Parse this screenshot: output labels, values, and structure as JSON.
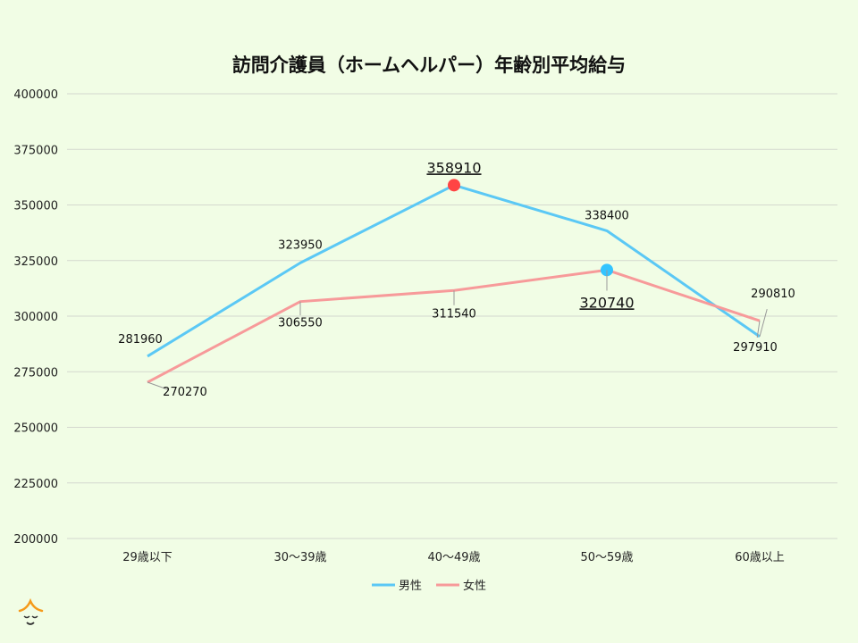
{
  "chart_data": {
    "type": "line",
    "title": "訪問介護員（ホームヘルパー）年齢別平均給与",
    "categories": [
      "29歳以下",
      "30～39歳",
      "40～49歳",
      "50～59歳",
      "60歳以上"
    ],
    "series": [
      {
        "name": "男性",
        "color": "#5bc8f5",
        "values": [
          281960,
          323950,
          358910,
          338400,
          290810
        ]
      },
      {
        "name": "女性",
        "color": "#f79a9a",
        "values": [
          270270,
          306550,
          311540,
          320740,
          297910
        ]
      }
    ],
    "highlights": [
      {
        "series": "男性",
        "category": "40～49歳",
        "value": 358910,
        "marker_color": "#ff4444"
      },
      {
        "series": "女性",
        "category": "50～59歳",
        "value": 320740,
        "marker_color": "#33c4ff"
      }
    ],
    "ylim": [
      200000,
      400000
    ],
    "yticks": [
      200000,
      225000,
      250000,
      275000,
      300000,
      325000,
      350000,
      375000,
      400000
    ],
    "grid": true,
    "legend": "bottom",
    "xlabel": "",
    "ylabel": ""
  }
}
